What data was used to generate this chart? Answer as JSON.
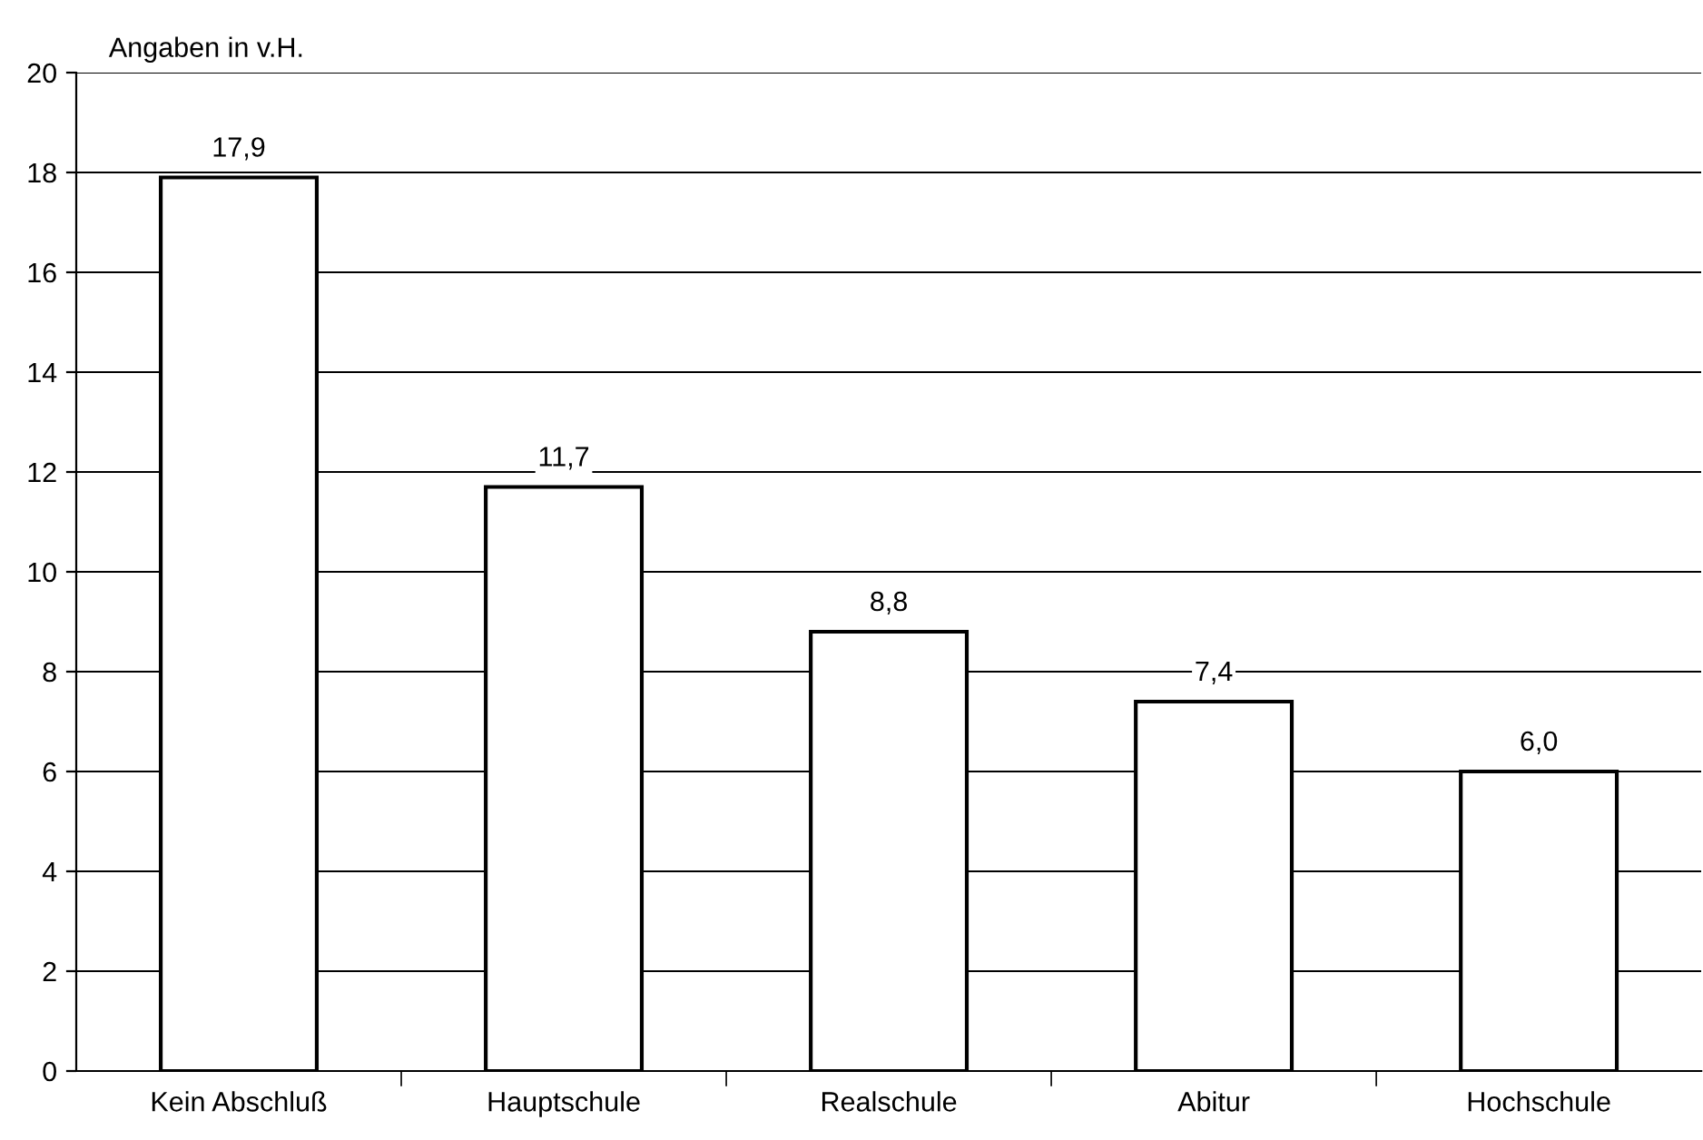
{
  "chart_data": {
    "type": "bar",
    "ylabel": "Angaben in v.H.",
    "categories": [
      "Kein Abschluß",
      "Hauptschule",
      "Realschule",
      "Abitur",
      "Hochschule"
    ],
    "values": [
      17.9,
      11.7,
      8.8,
      7.4,
      6.0
    ],
    "value_labels": [
      "17,9",
      "11,7",
      "8,8",
      "7,4",
      "6,0"
    ],
    "color": "#ffffff",
    "ylim": [
      0,
      20
    ],
    "yticks": [
      0,
      2,
      4,
      6,
      8,
      10,
      12,
      14,
      16,
      18,
      20
    ],
    "grid": "y",
    "legend": false
  }
}
